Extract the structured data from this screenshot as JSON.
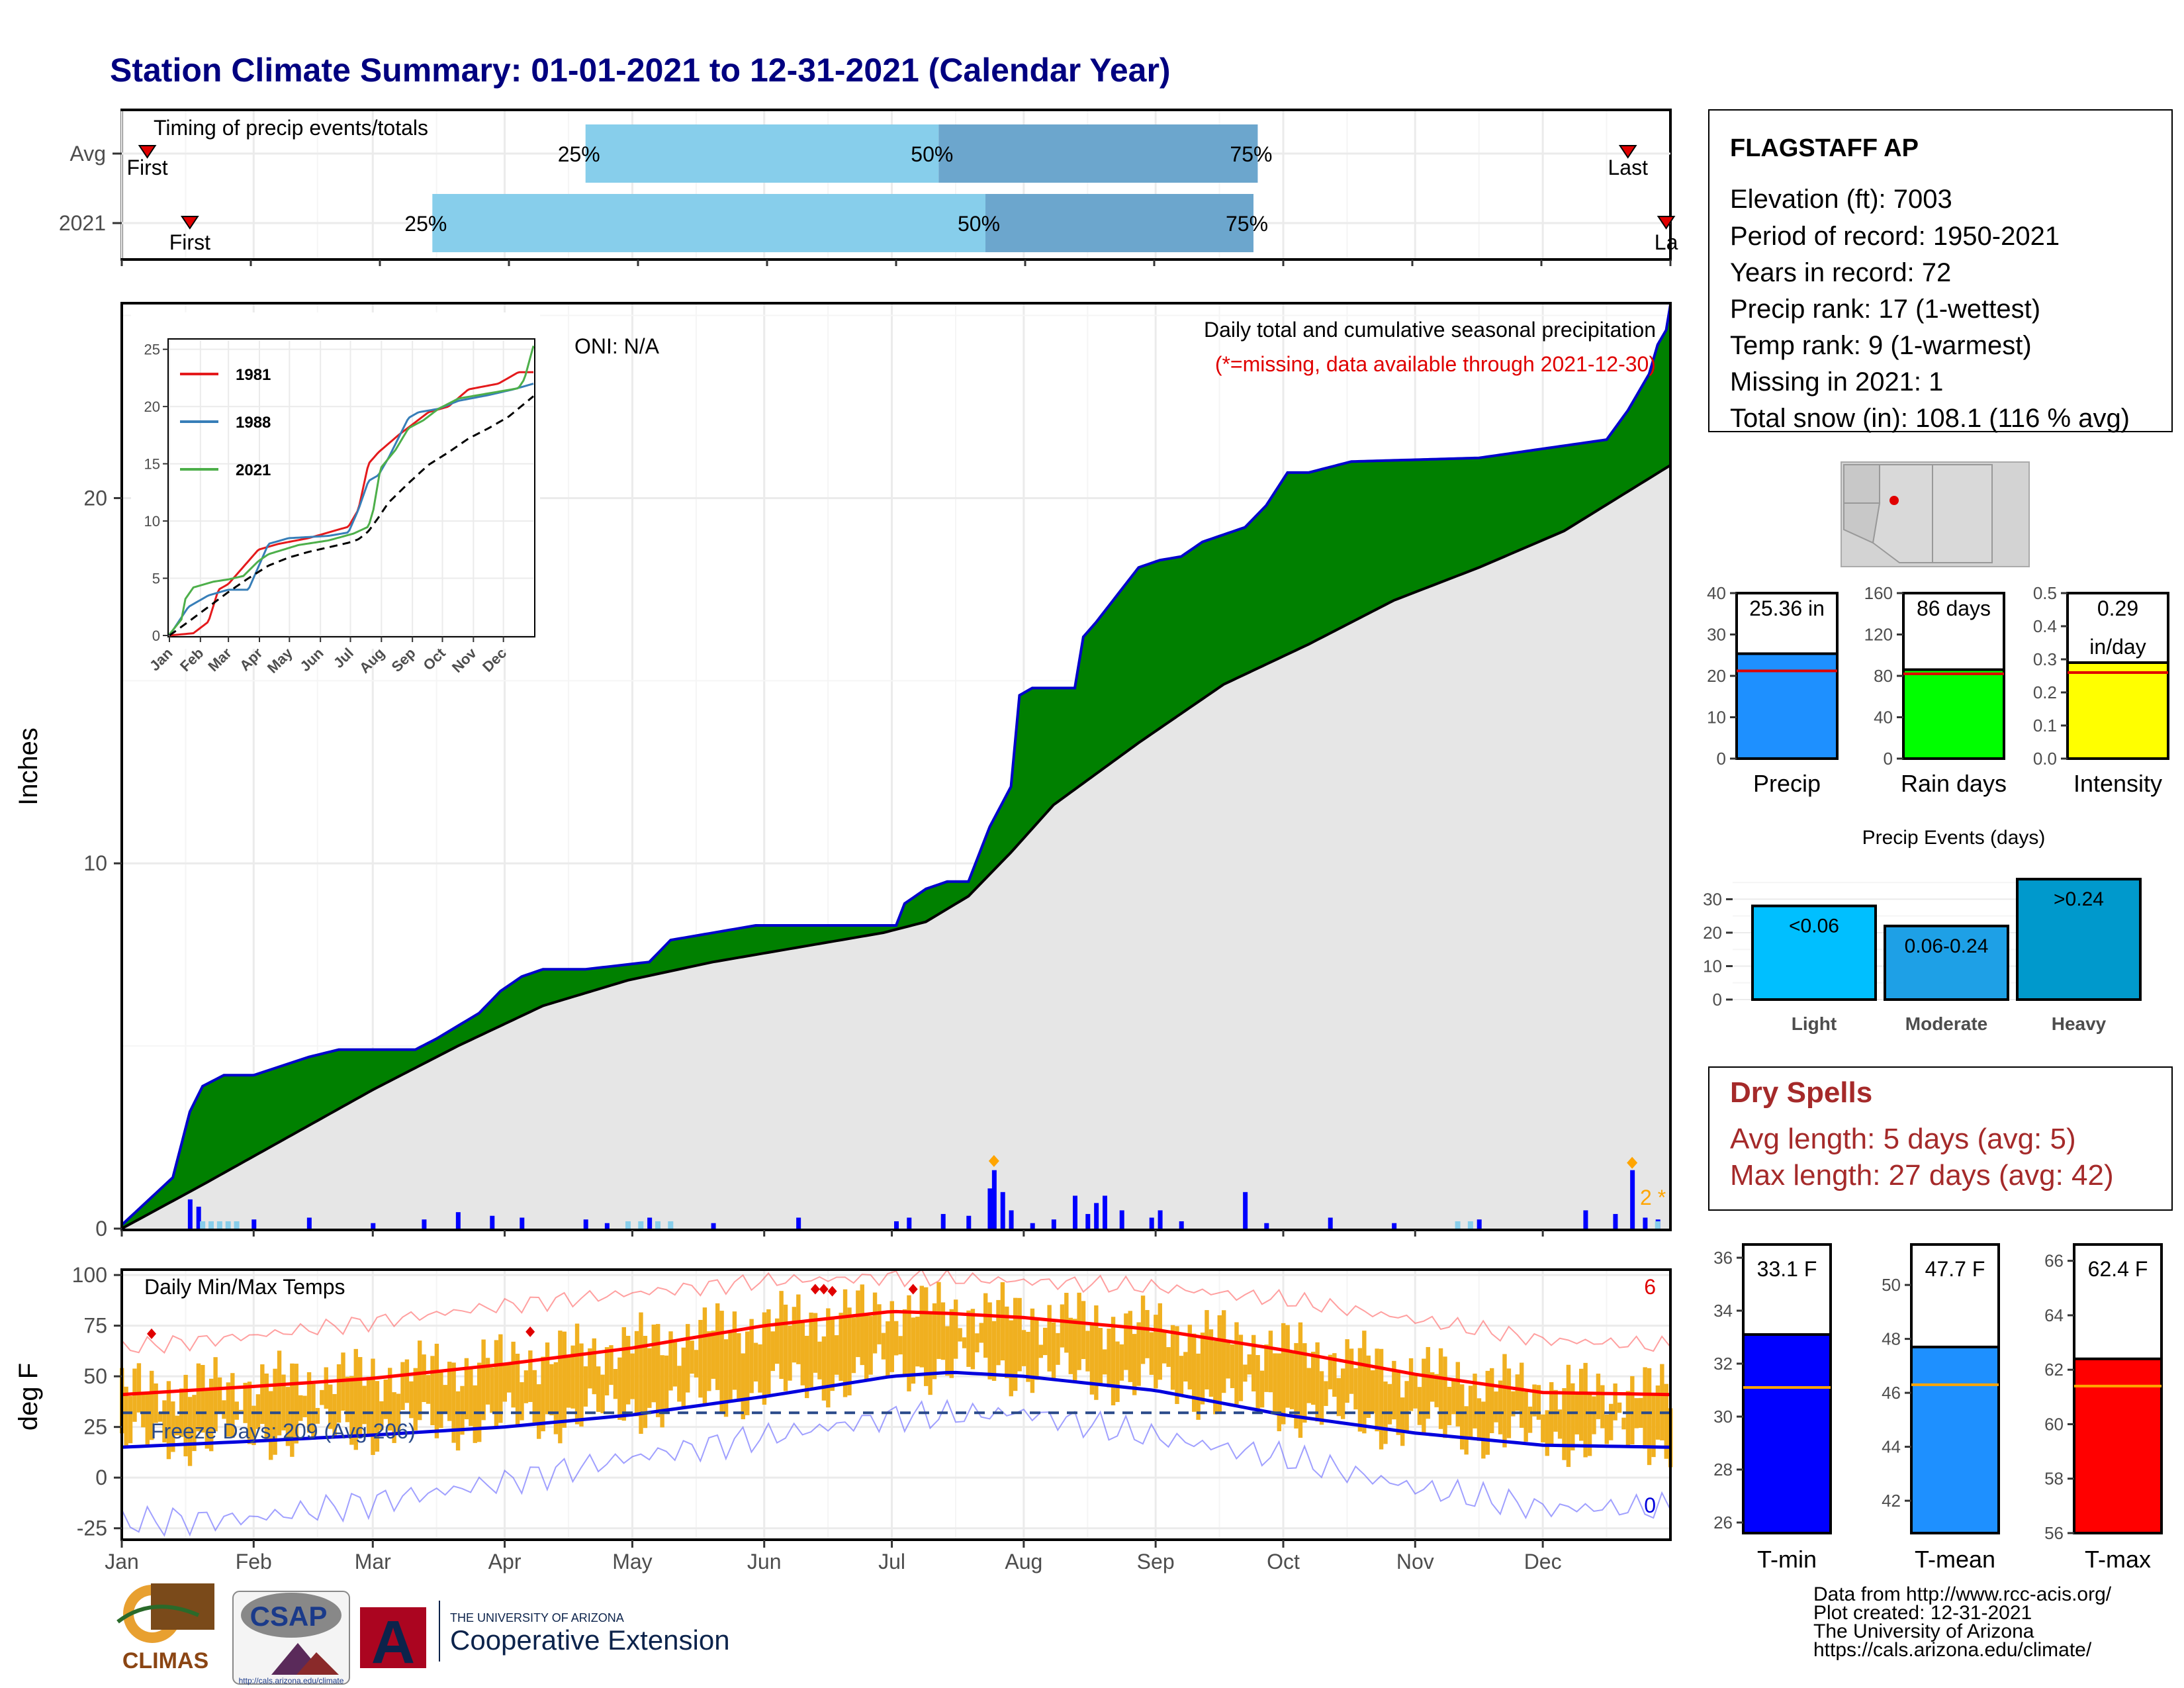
{
  "title": "Station Climate Summary: 01-01-2021 to 12-31-2021 (Calendar Year)",
  "timing": {
    "title": "Timing of precip events/totals",
    "rows": [
      {
        "label": "Avg",
        "first_doy": 7,
        "p25_doy": 110,
        "p50_doy": 193,
        "p75_doy": 268,
        "last_doy": 355,
        "first_label": "First",
        "last_label": "Last"
      },
      {
        "label": "2021",
        "first_doy": 17,
        "p25_doy": 74,
        "p50_doy": 204,
        "p75_doy": 267,
        "last_doy": 364,
        "first_label": "First",
        "last_label": "La"
      }
    ],
    "pct_labels": [
      "25%",
      "50%",
      "75%"
    ]
  },
  "station": {
    "name": "FLAGSTAFF AP",
    "lines": [
      "Elevation (ft): 7003",
      "Period of record: 1950-2021",
      "Years in record: 72",
      "Precip rank: 17 (1-wettest)",
      "Temp rank: 9 (1-warmest)",
      "Missing in 2021: 1",
      "Total snow (in): 108.1 (116 % avg)"
    ]
  },
  "precip_panel": {
    "ylabel": "Inches",
    "yticks": [
      "0",
      "10",
      "20"
    ],
    "ann_title": "Daily total and cumulative seasonal precipitation",
    "ann_missing": "(*=missing, data available through 2021-12-30)",
    "oni": "ONI: N/A",
    "right_note": "2 *",
    "months": [
      "Jan",
      "Feb",
      "Mar",
      "Apr",
      "May",
      "Jun",
      "Jul",
      "Aug",
      "Sep",
      "Oct",
      "Nov",
      "Dec"
    ],
    "colors": {
      "above": "#008000",
      "below": "#e6e6e6",
      "early": "#8b5a0a",
      "obs": "#0000cc",
      "avg": "#000000",
      "bar": "#0000ff",
      "snow": "#87ceeb"
    }
  },
  "inset": {
    "yticks": [
      "0",
      "5",
      "10",
      "15",
      "20",
      "25"
    ],
    "months": [
      "Jan",
      "Feb",
      "Mar",
      "Apr",
      "May",
      "Jun",
      "Jul",
      "Aug",
      "Sep",
      "Oct",
      "Nov",
      "Dec"
    ],
    "legend": [
      {
        "name": "1981",
        "color": "#e41a1c"
      },
      {
        "name": "1988",
        "color": "#377eb8"
      },
      {
        "name": "2021",
        "color": "#4daf4a"
      }
    ]
  },
  "temp_panel": {
    "ylabel": "deg F",
    "title": "Daily Min/Max Temps",
    "yticks": [
      "100",
      "75",
      "50",
      "25",
      "0",
      "-25"
    ],
    "freeze_label": "Freeze Days: 209 (Avg 206)",
    "max_records": "6",
    "min_records": "0",
    "months": [
      "Jan",
      "Feb",
      "Mar",
      "Apr",
      "May",
      "Jun",
      "Jul",
      "Aug",
      "Sep",
      "Oct",
      "Nov",
      "Dec"
    ],
    "colors": {
      "range": "#f0b020",
      "avg_max": "#ff0000",
      "avg_min": "#0000dd",
      "freeze": "#2a4a8a"
    }
  },
  "summary_bars": [
    {
      "name": "Precip",
      "label_top": "25.36 in",
      "value": 25.36,
      "avg": 21.2,
      "ymax": 40,
      "ticks": [
        "0",
        "10",
        "20",
        "30",
        "40"
      ],
      "color": "#1e90ff"
    },
    {
      "name": "Rain days",
      "label_top": "86 days",
      "value": 86,
      "avg": 82,
      "ymax": 160,
      "ticks": [
        "0",
        "40",
        "80",
        "120",
        "160"
      ],
      "color": "#00ff00"
    },
    {
      "name": "Intensity",
      "label_top": "0.29",
      "label_top2": "in/day",
      "value": 0.29,
      "avg": 0.26,
      "ymax": 0.5,
      "ticks": [
        "0.0",
        "0.1",
        "0.2",
        "0.3",
        "0.4",
        "0.5"
      ],
      "color": "#ffff00"
    }
  ],
  "events": {
    "title": "Precip Events (days)",
    "ticks": [
      "0",
      "10",
      "20",
      "30"
    ],
    "bars": [
      {
        "name": "Light",
        "label": "<0.06",
        "value": 28,
        "color": "#00bfff"
      },
      {
        "name": "Moderate",
        "label": "0.06-0.24",
        "value": 22,
        "color": "#1ea0e6"
      },
      {
        "name": "Heavy",
        "label": ">0.24",
        "value": 36,
        "color": "#0099cc"
      }
    ]
  },
  "dry_spells": {
    "title": "Dry Spells",
    "avg_line": "Avg length: 5 days (avg: 5)",
    "max_line": "Max length: 27 days (avg: 42)"
  },
  "temp_bars": [
    {
      "name": "T-min",
      "label_top": "33.1 F",
      "value": 33.1,
      "avg": 31.1,
      "ymin": 25.6,
      "ymax": 36.5,
      "ticks": [
        "26",
        "28",
        "30",
        "32",
        "34",
        "36"
      ],
      "color": "#0000ff"
    },
    {
      "name": "T-mean",
      "label_top": "47.7 F",
      "value": 47.7,
      "avg": 46.3,
      "ymin": 40.8,
      "ymax": 51.5,
      "ticks": [
        "42",
        "44",
        "46",
        "48",
        "50"
      ],
      "color": "#1e90ff"
    },
    {
      "name": "T-max",
      "label_top": "62.4 F",
      "value": 62.4,
      "avg": 61.4,
      "ymin": 56,
      "ymax": 66.6,
      "ticks": [
        "56",
        "58",
        "60",
        "62",
        "64",
        "66"
      ],
      "color": "#ff0000"
    }
  ],
  "credits": [
    "Data from http://www.rcc-acis.org/",
    "Plot created: 12-31-2021",
    "The University of Arizona",
    "https://cals.arizona.edu/climate/"
  ],
  "logos": {
    "climas": "CLIMAS",
    "csap": "CSAP",
    "csap_url": "http://cals.arizona.edu/climate",
    "ua_letter": "A",
    "ua_top": "THE UNIVERSITY OF ARIZONA",
    "ua_bottom": "Cooperative Extension"
  },
  "chart_data": [
    {
      "type": "area",
      "title": "Daily total and cumulative seasonal precipitation",
      "ylabel": "Inches",
      "xlim": [
        1,
        365
      ],
      "ylim": [
        0,
        25.3
      ],
      "series": [
        {
          "name": "2021",
          "x": [
            1,
            13,
            17,
            20,
            25,
            32,
            45,
            52,
            60,
            70,
            75,
            85,
            90,
            95,
            100,
            110,
            125,
            130,
            150,
            160,
            175,
            180,
            183,
            185,
            190,
            195,
            200,
            202,
            205,
            210,
            212,
            215,
            225,
            227,
            230,
            240,
            245,
            250,
            255,
            260,
            265,
            270,
            275,
            280,
            290,
            320,
            350,
            355,
            360,
            362,
            364,
            365
          ],
          "y": [
            0.1,
            1.4,
            3.2,
            3.9,
            4.2,
            4.2,
            4.7,
            4.9,
            4.9,
            4.9,
            5.2,
            5.9,
            6.5,
            6.9,
            7.1,
            7.1,
            7.3,
            7.9,
            8.3,
            8.3,
            8.3,
            8.3,
            8.3,
            8.9,
            9.3,
            9.5,
            9.5,
            10.1,
            11.0,
            12.1,
            14.6,
            14.8,
            14.8,
            16.2,
            16.6,
            18.1,
            18.3,
            18.4,
            18.8,
            19.0,
            19.2,
            19.8,
            20.7,
            20.7,
            21.0,
            21.1,
            21.6,
            22.4,
            23.4,
            24.2,
            24.6,
            25.3
          ]
        },
        {
          "name": "",
          "x": [
            1,
            20,
            40,
            60,
            80,
            100,
            120,
            140,
            160,
            180,
            190,
            200,
            210,
            220,
            240,
            260,
            280,
            300,
            320,
            340,
            365
          ],
          "y": [
            0.0,
            1.2,
            2.5,
            3.8,
            5.0,
            6.1,
            6.8,
            7.3,
            7.7,
            8.1,
            8.4,
            9.1,
            10.3,
            11.6,
            13.3,
            14.9,
            16.0,
            17.2,
            18.1,
            19.1,
            20.9
          ]
        }
      ],
      "daily_bars": [
        [
          17,
          0.8
        ],
        [
          19,
          0.6
        ],
        [
          32,
          0.25
        ],
        [
          45,
          0.3
        ],
        [
          60,
          0.15
        ],
        [
          72,
          0.25
        ],
        [
          80,
          0.45
        ],
        [
          88,
          0.35
        ],
        [
          95,
          0.3
        ],
        [
          110,
          0.25
        ],
        [
          115,
          0.15
        ],
        [
          125,
          0.3
        ],
        [
          140,
          0.15
        ],
        [
          160,
          0.3
        ],
        [
          183,
          0.2
        ],
        [
          186,
          0.3
        ],
        [
          194,
          0.4
        ],
        [
          200,
          0.35
        ],
        [
          205,
          1.1
        ],
        [
          206,
          1.6
        ],
        [
          208,
          1.0
        ],
        [
          210,
          0.5
        ],
        [
          215,
          0.15
        ],
        [
          220,
          0.25
        ],
        [
          225,
          0.9
        ],
        [
          228,
          0.4
        ],
        [
          230,
          0.7
        ],
        [
          232,
          0.9
        ],
        [
          236,
          0.5
        ],
        [
          243,
          0.3
        ],
        [
          245,
          0.5
        ],
        [
          250,
          0.2
        ],
        [
          265,
          1.0
        ],
        [
          270,
          0.15
        ],
        [
          285,
          0.3
        ],
        [
          300,
          0.15
        ],
        [
          320,
          0.25
        ],
        [
          345,
          0.5
        ],
        [
          352,
          0.4
        ],
        [
          356,
          1.6
        ],
        [
          359,
          0.3
        ],
        [
          362,
          0.25
        ]
      ],
      "x_months": [
        "Jan",
        "Feb",
        "Mar",
        "Apr",
        "May",
        "Jun",
        "Jul",
        "Aug",
        "Sep",
        "Oct",
        "Nov",
        "Dec"
      ]
    },
    {
      "type": "line",
      "title": "",
      "xlim": [
        1,
        365
      ],
      "ylim": [
        0,
        25
      ],
      "x_months": [
        "Jan",
        "Feb",
        "Mar",
        "Apr",
        "May",
        "Jun",
        "Jul",
        "Aug",
        "Sep",
        "Oct",
        "Nov",
        "Dec"
      ],
      "series": [
        {
          "name": "1981",
          "x": [
            1,
            25,
            40,
            50,
            60,
            90,
            110,
            140,
            180,
            190,
            200,
            210,
            230,
            260,
            280,
            300,
            330,
            350,
            365
          ],
          "y": [
            0,
            0.2,
            1.2,
            4.0,
            4.5,
            7.5,
            8.0,
            8.5,
            9.5,
            11.0,
            15.0,
            16.0,
            17.5,
            19.5,
            20.0,
            21.5,
            22.0,
            23.0,
            23.0
          ]
        },
        {
          "name": "1988",
          "x": [
            1,
            20,
            30,
            40,
            60,
            80,
            95,
            100,
            120,
            160,
            180,
            190,
            200,
            210,
            220,
            240,
            250,
            270,
            290,
            320,
            345,
            365
          ],
          "y": [
            0,
            2.5,
            3.0,
            3.5,
            4.0,
            4.0,
            7.0,
            8.0,
            8.5,
            8.7,
            9.0,
            11.0,
            13.5,
            14.0,
            15.5,
            19.0,
            19.5,
            19.8,
            20.5,
            21.0,
            21.5,
            22.0
          ]
        },
        {
          "name": "2021",
          "x": [
            1,
            13,
            17,
            25,
            45,
            60,
            75,
            90,
            100,
            130,
            160,
            185,
            200,
            205,
            212,
            227,
            240,
            255,
            270,
            290,
            350,
            356,
            365
          ],
          "y": [
            0.1,
            1.4,
            3.2,
            4.2,
            4.7,
            4.9,
            5.2,
            6.5,
            7.1,
            7.9,
            8.3,
            8.9,
            9.5,
            11.0,
            14.6,
            16.2,
            18.1,
            18.8,
            19.8,
            20.7,
            21.6,
            22.4,
            25.3
          ]
        },
        {
          "name": "",
          "x": [
            1,
            20,
            40,
            60,
            80,
            100,
            120,
            140,
            160,
            180,
            190,
            200,
            210,
            220,
            240,
            260,
            280,
            300,
            320,
            340,
            365
          ],
          "y": [
            0.0,
            1.2,
            2.5,
            3.8,
            5.0,
            6.1,
            6.8,
            7.3,
            7.7,
            8.1,
            8.4,
            9.1,
            10.3,
            11.6,
            13.3,
            14.9,
            16.0,
            17.2,
            18.1,
            19.1,
            20.9
          ]
        }
      ]
    },
    {
      "type": "line",
      "title": "Daily Min/Max Temps",
      "ylabel": "deg F",
      "xlim": [
        1,
        365
      ],
      "ylim": [
        -30,
        102
      ],
      "x_months": [
        "Jan",
        "Feb",
        "Mar",
        "Apr",
        "May",
        "Jun",
        "Jul",
        "Aug",
        "Sep",
        "Oct",
        "Nov",
        "Dec"
      ],
      "series": [
        {
          "name": "",
          "x": [
            1,
            32,
            60,
            91,
            121,
            152,
            182,
            196,
            213,
            244,
            274,
            305,
            335,
            365
          ],
          "y": [
            41,
            45,
            49,
            56,
            64,
            75,
            82,
            81,
            79,
            73,
            63,
            51,
            42,
            41
          ]
        },
        {
          "name": "",
          "x": [
            1,
            32,
            60,
            91,
            121,
            152,
            182,
            196,
            213,
            244,
            274,
            305,
            335,
            365
          ],
          "y": [
            15,
            18,
            21,
            25,
            31,
            40,
            50,
            52,
            50,
            43,
            31,
            22,
            16,
            15
          ]
        },
        {
          "name": "",
          "x": [
            1,
            32,
            60,
            91,
            121,
            152,
            182,
            213,
            244,
            274,
            305,
            335,
            365
          ],
          "y": [
            64,
            70,
            77,
            85,
            91,
            97,
            99,
            97,
            94,
            88,
            78,
            68,
            65
          ]
        },
        {
          "name": "",
          "x": [
            1,
            32,
            60,
            91,
            121,
            152,
            182,
            213,
            244,
            274,
            305,
            335,
            365
          ],
          "y": [
            -22,
            -20,
            -12,
            -2,
            10,
            20,
            30,
            32,
            20,
            10,
            -5,
            -15,
            -15
          ]
        }
      ],
      "freeze_line": 32,
      "record_max_days": [
        [
          8,
          71
        ],
        [
          97,
          72
        ],
        [
          164,
          93
        ],
        [
          166,
          93
        ],
        [
          168,
          92
        ],
        [
          187,
          93
        ]
      ]
    },
    {
      "type": "bar",
      "title": "Precip Events (days)",
      "categories": [
        "Light",
        "Moderate",
        "Heavy"
      ],
      "values": [
        28,
        22,
        36
      ]
    }
  ]
}
